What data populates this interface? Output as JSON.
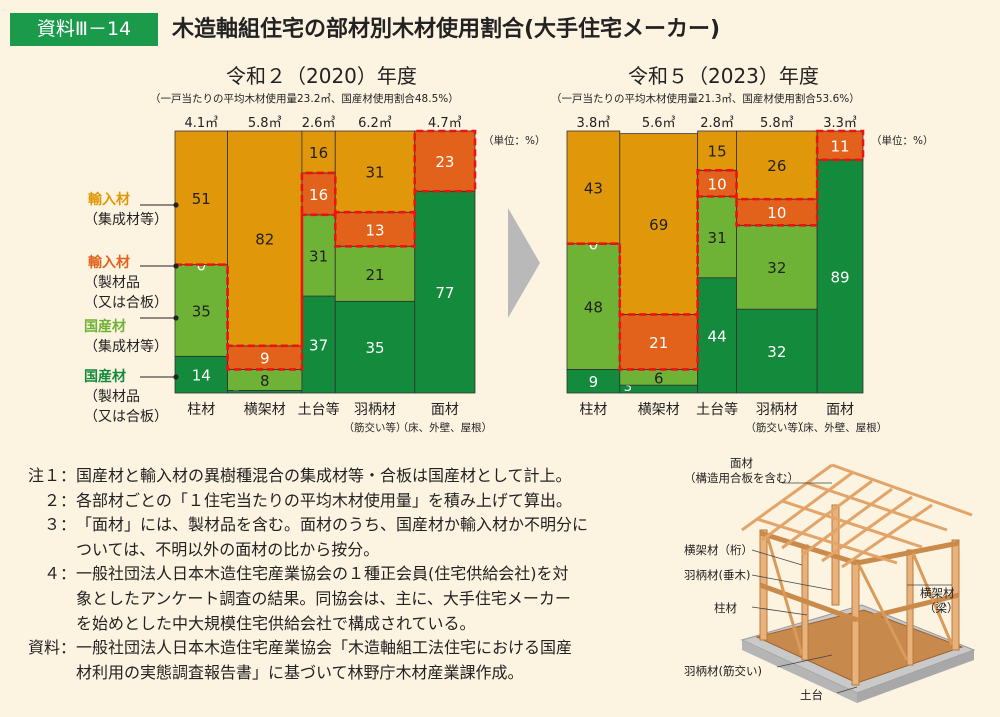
{
  "badge": "資料Ⅲ－14",
  "title": "木造軸組住宅の部材別木材使用割合(大手住宅メーカー)",
  "unit": "（単位：%）",
  "legend": [
    {
      "lines": [
        "輸入材",
        "（集成材等）"
      ],
      "color": "#e0980a"
    },
    {
      "lines": [
        "輸入材",
        "（製材品",
        "（又は合板）"
      ],
      "color": "#e2621c"
    },
    {
      "lines": [
        "国産材",
        "（集成材等）"
      ],
      "color": "#6fb336"
    },
    {
      "lines": [
        "国産材",
        "（製材品",
        "（又は合板）"
      ],
      "color": "#138a3c"
    }
  ],
  "chart_data": [
    {
      "type": "bar",
      "title": "令和２（2020）年度",
      "subtitle": "（一戸当たりの平均木材使用量23.2㎥、国産材使用割合48.5%）",
      "categories": [
        "柱材",
        "横架材",
        "土台等",
        "羽柄材",
        "面材"
      ],
      "category_notes": [
        "",
        "",
        "",
        "（筋交い等）",
        "（床、外壁、屋根）"
      ],
      "volumes": [
        "4.1㎥",
        "5.8㎥",
        "2.6㎥",
        "6.2㎥",
        "4.7㎥"
      ],
      "series": [
        {
          "name": "国産材（製材品（又は合板））",
          "values": [
            14,
            1,
            37,
            35,
            77
          ]
        },
        {
          "name": "国産材（集成材等）",
          "values": [
            35,
            8,
            31,
            21,
            0
          ]
        },
        {
          "name": "輸入材（製材品（又は合板））",
          "values": [
            0,
            9,
            16,
            13,
            23
          ]
        },
        {
          "name": "輸入材（集成材等）",
          "values": [
            51,
            82,
            16,
            31,
            0
          ]
        }
      ],
      "ylim": [
        0,
        100
      ]
    },
    {
      "type": "bar",
      "title": "令和５（2023）年度",
      "subtitle": "（一戸当たりの平均木材使用量21.3㎥、国産材使用割合53.6%）",
      "categories": [
        "柱材",
        "横架材",
        "土台等",
        "羽柄材",
        "面材"
      ],
      "category_notes": [
        "",
        "",
        "",
        "（筋交い等）",
        "（床、外壁、屋根）"
      ],
      "volumes": [
        "3.8㎥",
        "5.6㎥",
        "2.8㎥",
        "5.8㎥",
        "3.3㎥"
      ],
      "series": [
        {
          "name": "国産材（製材品（又は合板））",
          "values": [
            9,
            3,
            44,
            32,
            89
          ]
        },
        {
          "name": "国産材（集成材等）",
          "values": [
            48,
            6,
            31,
            32,
            0
          ]
        },
        {
          "name": "輸入材（製材品（又は合板））",
          "values": [
            0,
            21,
            10,
            10,
            11
          ]
        },
        {
          "name": "輸入材（集成材等）",
          "values": [
            43,
            69,
            15,
            26,
            0
          ]
        }
      ],
      "ylim": [
        0,
        100
      ]
    }
  ],
  "notes": [
    {
      "label": "注１：",
      "lines": [
        "国産材と輸入材の異樹種混合の集成材等・合板は国産材として計上。"
      ]
    },
    {
      "label": "２：",
      "lines": [
        "各部材ごとの「１住宅当たりの平均木材使用量」を積み上げて算出。"
      ]
    },
    {
      "label": "３：",
      "lines": [
        "「面材」には、製材品を含む。面材のうち、国産材か輸入材か不明分に",
        "ついては、不明以外の面材の比から按分。"
      ]
    },
    {
      "label": "４：",
      "lines": [
        "一般社団法人日本木造住宅産業協会の１種正会員(住宅供給会社)を対",
        "象としたアンケート調査の結果。同協会は、主に、大手住宅メーカー",
        "を始めとした中大規模住宅供給会社で構成されている。"
      ]
    },
    {
      "label": "資料：",
      "lines": [
        "一般社団法人日本木造住宅産業協会「木造軸組工法住宅における国産",
        "材利用の実態調査報告書」に基づいて林野庁木材産業課作成。"
      ]
    }
  ],
  "diagram": {
    "labels": [
      "面材",
      "（構造用合板を含む）",
      "横架材（桁）",
      "羽柄材(垂木)",
      "柱材",
      "横架材",
      "（梁）",
      "羽柄材(筋交い)",
      "土台"
    ]
  }
}
